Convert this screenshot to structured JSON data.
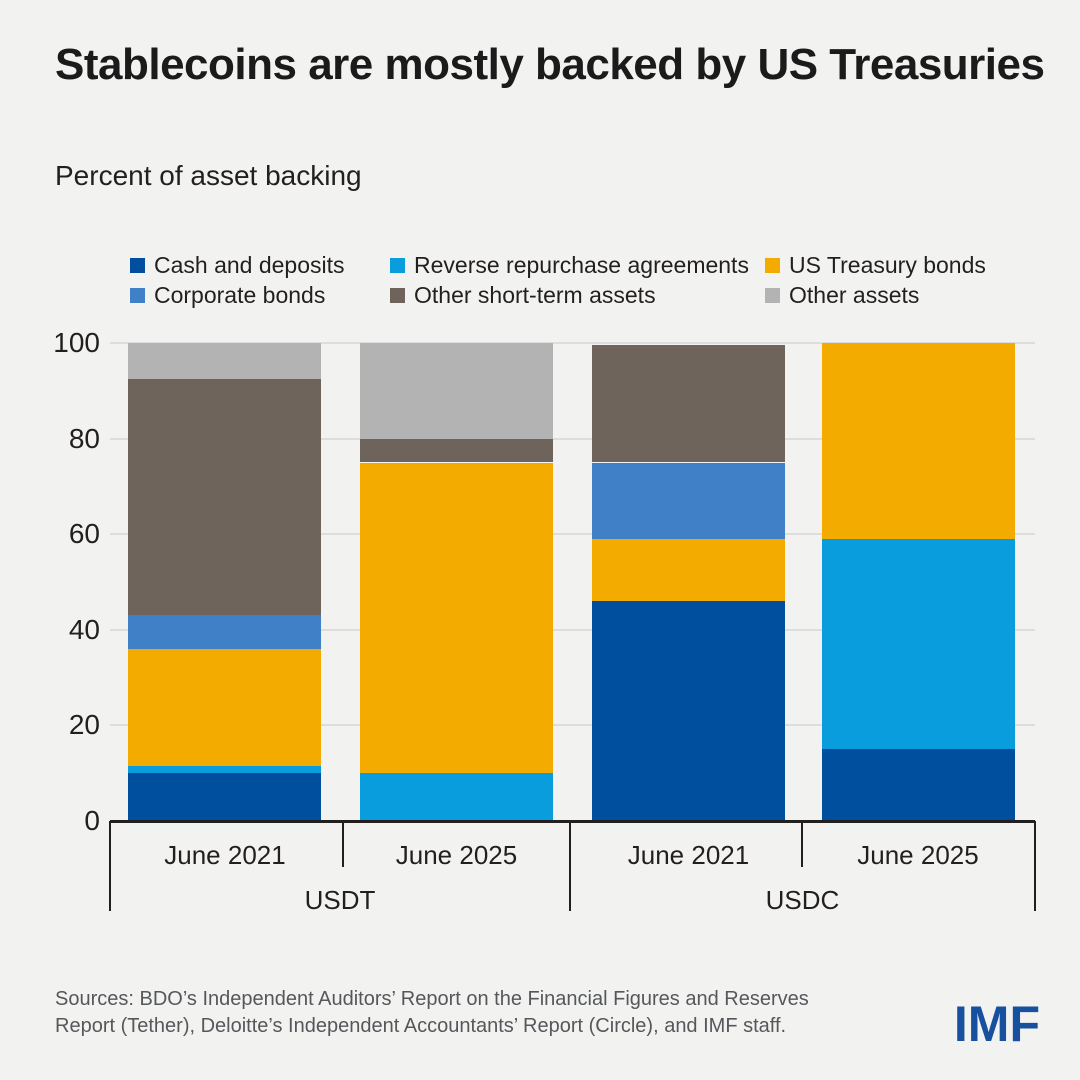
{
  "title": "Stablecoins are mostly backed by US Treasuries",
  "subtitle": "Percent of asset backing",
  "chart_data": {
    "type": "bar",
    "stacked": true,
    "title": "Stablecoins are mostly backed by US Treasuries",
    "ylabel": "Percent of asset backing",
    "ylim": [
      0,
      100
    ],
    "yticks": [
      0,
      20,
      40,
      60,
      80,
      100
    ],
    "grid": true,
    "legend_position": "top",
    "groups": [
      {
        "label": "USDT",
        "bar_labels": [
          "June 2021",
          "June 2025"
        ]
      },
      {
        "label": "USDC",
        "bar_labels": [
          "June 2021",
          "June 2025"
        ]
      }
    ],
    "categories": [
      "USDT June 2021",
      "USDT June 2025",
      "USDC June 2021",
      "USDC June 2025"
    ],
    "series": [
      {
        "name": "Cash and deposits",
        "color": "#004f9e",
        "values": [
          10,
          0,
          46,
          15
        ]
      },
      {
        "name": "Reverse repurchase agreements",
        "color": "#099ddd",
        "values": [
          1.5,
          10,
          0,
          44
        ]
      },
      {
        "name": "US Treasury bonds",
        "color": "#f3ab00",
        "values": [
          24.5,
          65,
          13,
          41
        ]
      },
      {
        "name": "Corporate bonds",
        "color": "#4080c7",
        "values": [
          7,
          0,
          16,
          0
        ]
      },
      {
        "name": "Other short-term assets",
        "color": "#6e645c",
        "values": [
          49.5,
          5,
          24.5,
          0
        ]
      },
      {
        "name": "Other assets",
        "color": "#b2b3b2",
        "values": [
          7.5,
          20,
          0,
          0
        ]
      }
    ]
  },
  "footer": {
    "sources_line1": "Sources: BDO’s Independent Auditors’ Report on the Financial Figures and Reserves",
    "sources_line2": "Report (Tether), Deloitte’s Independent Accountants’ Report (Circle), and IMF staff.",
    "logo": "IMF"
  },
  "colors": {
    "background": "#f2f3f1",
    "text": "#231f20",
    "axis": "#231f20",
    "gridline": "#dcdddc",
    "sources_text": "#56575b",
    "imf_logo": "#17509e"
  }
}
